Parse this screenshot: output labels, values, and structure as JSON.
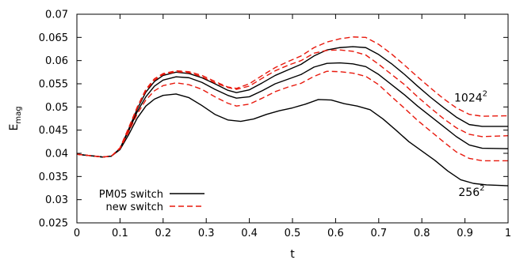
{
  "chart_data": {
    "type": "line",
    "title": "",
    "xlabel": "t",
    "ylabel_base": "E",
    "ylabel_sub": "mag",
    "xlim": [
      0,
      1
    ],
    "ylim": [
      0.025,
      0.07
    ],
    "x_ticks": [
      0,
      0.1,
      0.2,
      0.3,
      0.4,
      0.5,
      0.6,
      0.7,
      0.8,
      0.9,
      1
    ],
    "x_tick_labels": [
      "0",
      "0.1",
      "0.2",
      "0.3",
      "0.4",
      "0.5",
      "0.6",
      "0.7",
      "0.8",
      "0.9",
      "1"
    ],
    "y_ticks": [
      0.025,
      0.03,
      0.035,
      0.04,
      0.045,
      0.05,
      0.055,
      0.06,
      0.065,
      0.07
    ],
    "y_tick_labels": [
      "0.025",
      "0.03",
      "0.035",
      "0.04",
      "0.045",
      "0.05",
      "0.055",
      "0.06",
      "0.065",
      "0.07"
    ],
    "grid": false,
    "legend_position": "bottom-left",
    "legend": [
      {
        "label": "PM05 switch",
        "color": "#000000",
        "dash": "solid"
      },
      {
        "label": "new switch",
        "color": "#e8180c",
        "dash": "dashed"
      }
    ],
    "annotations": [
      {
        "base": "1024",
        "sup": "2",
        "x": 0.875,
        "y": 0.0512
      },
      {
        "base": "256",
        "sup": "2",
        "x": 0.885,
        "y": 0.0308
      }
    ],
    "series": [
      {
        "style": "solid",
        "color": "#000000",
        "points": [
          [
            0,
            0.0398
          ],
          [
            0.03,
            0.0395
          ],
          [
            0.06,
            0.0392
          ],
          [
            0.08,
            0.0394
          ],
          [
            0.1,
            0.0408
          ],
          [
            0.12,
            0.044
          ],
          [
            0.14,
            0.0476
          ],
          [
            0.16,
            0.0502
          ],
          [
            0.18,
            0.0517
          ],
          [
            0.2,
            0.0525
          ],
          [
            0.23,
            0.0528
          ],
          [
            0.26,
            0.052
          ],
          [
            0.29,
            0.0503
          ],
          [
            0.32,
            0.0484
          ],
          [
            0.35,
            0.0472
          ],
          [
            0.38,
            0.0469
          ],
          [
            0.41,
            0.0474
          ],
          [
            0.44,
            0.0484
          ],
          [
            0.47,
            0.0492
          ],
          [
            0.5,
            0.0498
          ],
          [
            0.53,
            0.0506
          ],
          [
            0.56,
            0.0516
          ],
          [
            0.59,
            0.0515
          ],
          [
            0.62,
            0.0507
          ],
          [
            0.65,
            0.0502
          ],
          [
            0.68,
            0.0494
          ],
          [
            0.71,
            0.0474
          ],
          [
            0.74,
            0.045
          ],
          [
            0.77,
            0.0425
          ],
          [
            0.8,
            0.0405
          ],
          [
            0.83,
            0.0385
          ],
          [
            0.86,
            0.0362
          ],
          [
            0.89,
            0.0343
          ],
          [
            0.92,
            0.0335
          ],
          [
            0.95,
            0.0332
          ],
          [
            1,
            0.033
          ]
        ]
      },
      {
        "style": "solid",
        "color": "#000000",
        "points": [
          [
            0,
            0.0398
          ],
          [
            0.03,
            0.0395
          ],
          [
            0.06,
            0.0392
          ],
          [
            0.08,
            0.0394
          ],
          [
            0.1,
            0.041
          ],
          [
            0.12,
            0.0448
          ],
          [
            0.14,
            0.049
          ],
          [
            0.16,
            0.0522
          ],
          [
            0.18,
            0.0545
          ],
          [
            0.2,
            0.0558
          ],
          [
            0.23,
            0.0565
          ],
          [
            0.26,
            0.0563
          ],
          [
            0.29,
            0.0553
          ],
          [
            0.32,
            0.0538
          ],
          [
            0.35,
            0.0525
          ],
          [
            0.37,
            0.0519
          ],
          [
            0.4,
            0.0522
          ],
          [
            0.43,
            0.0535
          ],
          [
            0.46,
            0.055
          ],
          [
            0.49,
            0.056
          ],
          [
            0.52,
            0.057
          ],
          [
            0.55,
            0.0586
          ],
          [
            0.58,
            0.0594
          ],
          [
            0.61,
            0.0595
          ],
          [
            0.64,
            0.0593
          ],
          [
            0.67,
            0.0587
          ],
          [
            0.7,
            0.057
          ],
          [
            0.73,
            0.0548
          ],
          [
            0.76,
            0.0526
          ],
          [
            0.79,
            0.0502
          ],
          [
            0.82,
            0.048
          ],
          [
            0.85,
            0.0458
          ],
          [
            0.88,
            0.0436
          ],
          [
            0.91,
            0.0418
          ],
          [
            0.94,
            0.0411
          ],
          [
            1,
            0.041
          ]
        ]
      },
      {
        "style": "solid",
        "color": "#000000",
        "points": [
          [
            0,
            0.0398
          ],
          [
            0.03,
            0.0395
          ],
          [
            0.06,
            0.0392
          ],
          [
            0.08,
            0.0394
          ],
          [
            0.1,
            0.041
          ],
          [
            0.12,
            0.0452
          ],
          [
            0.14,
            0.0496
          ],
          [
            0.16,
            0.0532
          ],
          [
            0.18,
            0.0555
          ],
          [
            0.2,
            0.0568
          ],
          [
            0.23,
            0.0575
          ],
          [
            0.26,
            0.0572
          ],
          [
            0.29,
            0.0563
          ],
          [
            0.32,
            0.055
          ],
          [
            0.35,
            0.0536
          ],
          [
            0.37,
            0.0531
          ],
          [
            0.4,
            0.0537
          ],
          [
            0.43,
            0.0552
          ],
          [
            0.46,
            0.0568
          ],
          [
            0.49,
            0.058
          ],
          [
            0.52,
            0.0592
          ],
          [
            0.55,
            0.061
          ],
          [
            0.58,
            0.0623
          ],
          [
            0.61,
            0.0628
          ],
          [
            0.64,
            0.063
          ],
          [
            0.67,
            0.0628
          ],
          [
            0.7,
            0.0613
          ],
          [
            0.73,
            0.0593
          ],
          [
            0.76,
            0.057
          ],
          [
            0.79,
            0.0545
          ],
          [
            0.82,
            0.0521
          ],
          [
            0.85,
            0.0499
          ],
          [
            0.88,
            0.0478
          ],
          [
            0.91,
            0.0462
          ],
          [
            0.94,
            0.0458
          ],
          [
            1,
            0.0458
          ]
        ]
      },
      {
        "style": "dashed",
        "color": "#e8180c",
        "points": [
          [
            0,
            0.0398
          ],
          [
            0.03,
            0.0395
          ],
          [
            0.06,
            0.0392
          ],
          [
            0.08,
            0.0394
          ],
          [
            0.1,
            0.041
          ],
          [
            0.12,
            0.0446
          ],
          [
            0.14,
            0.0485
          ],
          [
            0.16,
            0.0515
          ],
          [
            0.18,
            0.0535
          ],
          [
            0.2,
            0.0546
          ],
          [
            0.23,
            0.0552
          ],
          [
            0.26,
            0.0548
          ],
          [
            0.29,
            0.0538
          ],
          [
            0.32,
            0.0522
          ],
          [
            0.35,
            0.0508
          ],
          [
            0.37,
            0.0502
          ],
          [
            0.4,
            0.0506
          ],
          [
            0.43,
            0.0519
          ],
          [
            0.46,
            0.0533
          ],
          [
            0.49,
            0.0543
          ],
          [
            0.52,
            0.0551
          ],
          [
            0.55,
            0.0566
          ],
          [
            0.58,
            0.0577
          ],
          [
            0.61,
            0.0576
          ],
          [
            0.64,
            0.0573
          ],
          [
            0.67,
            0.0566
          ],
          [
            0.7,
            0.0548
          ],
          [
            0.73,
            0.0522
          ],
          [
            0.76,
            0.0497
          ],
          [
            0.79,
            0.0471
          ],
          [
            0.82,
            0.0448
          ],
          [
            0.85,
            0.0425
          ],
          [
            0.88,
            0.0403
          ],
          [
            0.91,
            0.0389
          ],
          [
            0.94,
            0.0384
          ],
          [
            1,
            0.0384
          ]
        ]
      },
      {
        "style": "dashed",
        "color": "#e8180c",
        "points": [
          [
            0,
            0.0398
          ],
          [
            0.03,
            0.0395
          ],
          [
            0.06,
            0.0392
          ],
          [
            0.08,
            0.0394
          ],
          [
            0.1,
            0.041
          ],
          [
            0.12,
            0.0452
          ],
          [
            0.14,
            0.0498
          ],
          [
            0.16,
            0.0535
          ],
          [
            0.18,
            0.0558
          ],
          [
            0.2,
            0.057
          ],
          [
            0.23,
            0.0576
          ],
          [
            0.26,
            0.0574
          ],
          [
            0.29,
            0.0565
          ],
          [
            0.32,
            0.0552
          ],
          [
            0.35,
            0.0542
          ],
          [
            0.37,
            0.0538
          ],
          [
            0.4,
            0.0545
          ],
          [
            0.43,
            0.0562
          ],
          [
            0.46,
            0.0578
          ],
          [
            0.49,
            0.059
          ],
          [
            0.52,
            0.06
          ],
          [
            0.55,
            0.0616
          ],
          [
            0.58,
            0.0622
          ],
          [
            0.61,
            0.0623
          ],
          [
            0.64,
            0.062
          ],
          [
            0.67,
            0.0612
          ],
          [
            0.7,
            0.0592
          ],
          [
            0.73,
            0.057
          ],
          [
            0.76,
            0.0548
          ],
          [
            0.79,
            0.0522
          ],
          [
            0.82,
            0.0498
          ],
          [
            0.85,
            0.0475
          ],
          [
            0.88,
            0.0455
          ],
          [
            0.91,
            0.0441
          ],
          [
            0.94,
            0.0436
          ],
          [
            1,
            0.0438
          ]
        ]
      },
      {
        "style": "dashed",
        "color": "#e8180c",
        "points": [
          [
            0,
            0.0398
          ],
          [
            0.03,
            0.0395
          ],
          [
            0.06,
            0.0392
          ],
          [
            0.08,
            0.0394
          ],
          [
            0.1,
            0.0412
          ],
          [
            0.12,
            0.0455
          ],
          [
            0.14,
            0.05
          ],
          [
            0.16,
            0.0538
          ],
          [
            0.18,
            0.0561
          ],
          [
            0.2,
            0.0572
          ],
          [
            0.23,
            0.0578
          ],
          [
            0.26,
            0.0576
          ],
          [
            0.29,
            0.0568
          ],
          [
            0.32,
            0.0555
          ],
          [
            0.35,
            0.0543
          ],
          [
            0.37,
            0.054
          ],
          [
            0.4,
            0.055
          ],
          [
            0.43,
            0.0568
          ],
          [
            0.46,
            0.0585
          ],
          [
            0.49,
            0.0598
          ],
          [
            0.52,
            0.061
          ],
          [
            0.55,
            0.0628
          ],
          [
            0.58,
            0.064
          ],
          [
            0.61,
            0.0647
          ],
          [
            0.64,
            0.0651
          ],
          [
            0.67,
            0.065
          ],
          [
            0.7,
            0.0635
          ],
          [
            0.73,
            0.0614
          ],
          [
            0.76,
            0.059
          ],
          [
            0.79,
            0.0565
          ],
          [
            0.82,
            0.0541
          ],
          [
            0.85,
            0.0518
          ],
          [
            0.88,
            0.0498
          ],
          [
            0.91,
            0.0484
          ],
          [
            0.94,
            0.048
          ],
          [
            1,
            0.0481
          ]
        ]
      }
    ]
  }
}
